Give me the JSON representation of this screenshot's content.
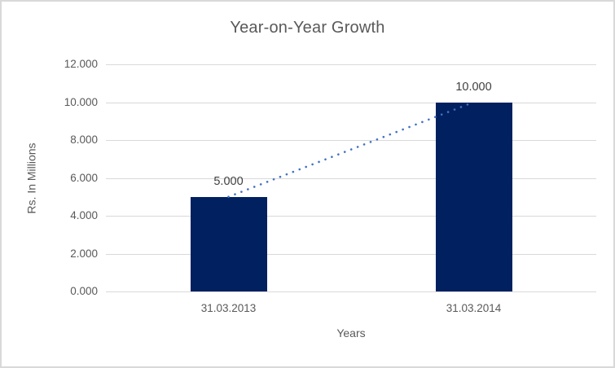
{
  "chart_data": {
    "type": "bar",
    "title": "Year-on-Year Growth",
    "categories": [
      "31.03.2013",
      "31.03.2014"
    ],
    "values": [
      5,
      10
    ],
    "data_labels": [
      "5.000",
      "10.000"
    ],
    "xlabel": "Years",
    "ylabel": "Rs. In Millions",
    "ylim": [
      0,
      12
    ],
    "ytick_values": [
      0,
      2,
      4,
      6,
      8,
      10,
      12
    ],
    "ytick_labels": [
      "0.000",
      "2.000",
      "4.000",
      "6.000",
      "8.000",
      "10.000",
      "12.000"
    ],
    "grid": true,
    "legend": false,
    "bar_color": "#002060",
    "gridline_color": "#d9d9d9",
    "trendline": {
      "style": "dotted",
      "color": "#4472c4",
      "connects": "bar tops",
      "from_value": 5,
      "to_value": 10
    },
    "text_colors": {
      "title": "#595959",
      "axis": "#595959",
      "data_label": "#404040"
    }
  }
}
